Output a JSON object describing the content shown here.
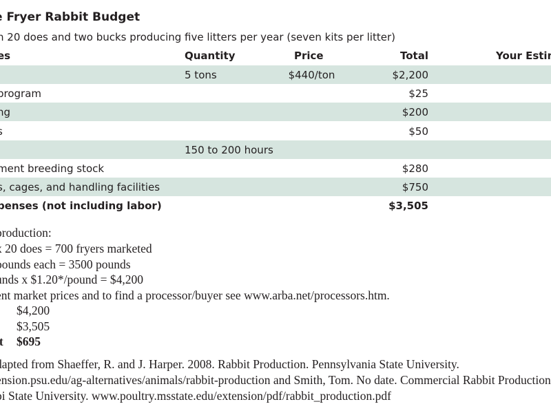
{
  "title": "e Fryer Rabbit Budget",
  "subtitle": "n 20 does and two bucks producing five litters per year (seven kits per litter)",
  "table": {
    "headers": {
      "item": "es",
      "quantity": "Quantity",
      "price": "Price",
      "total": "Total",
      "estimate": "Your Estim"
    },
    "rows": [
      {
        "item": "",
        "quantity": "5 tons",
        "price": "$440/ton",
        "total": "$2,200",
        "shaded": true
      },
      {
        "item": "program",
        "quantity": "",
        "price": "",
        "total": "$25",
        "shaded": false
      },
      {
        "item": "ng",
        "quantity": "",
        "price": "",
        "total": "$200",
        "shaded": true
      },
      {
        "item": "s",
        "quantity": "",
        "price": "",
        "total": "$50",
        "shaded": false
      },
      {
        "item": "",
        "quantity": "150 to 200 hours",
        "price": "",
        "total": "",
        "shaded": true
      },
      {
        "item": "ment breeding stock",
        "quantity": "",
        "price": "",
        "total": "$280",
        "shaded": false
      },
      {
        "item": "s, cages, and handling facilities",
        "quantity": "",
        "price": "",
        "total": "$750",
        "shaded": true
      }
    ],
    "total_row": {
      "item": "penses (not including labor)",
      "total": "$3,505"
    }
  },
  "notes": [
    "production:",
    "x 20 does = 700 fryers marketed",
    "pounds each  = 3500 pounds",
    "unds x $1.20*/pound = $4,200",
    "ent market prices and to find a processor/buyer see www.arba.net/processors.htm."
  ],
  "summary": {
    "income": "$4,200",
    "expenses": "$3,505",
    "profit_label": "it",
    "profit": "$695"
  },
  "source": [
    "dapted from Shaeffer, R. and J. Harper. 2008. Rabbit Production. Pennsylvania State University.",
    "ension.psu.edu/ag-alternatives/animals/rabbit-production and Smith, Tom. No date. Commercial Rabbit Production",
    "pi State University. www.poultry.msstate.edu/extension/pdf/rabbit_production.pdf"
  ]
}
